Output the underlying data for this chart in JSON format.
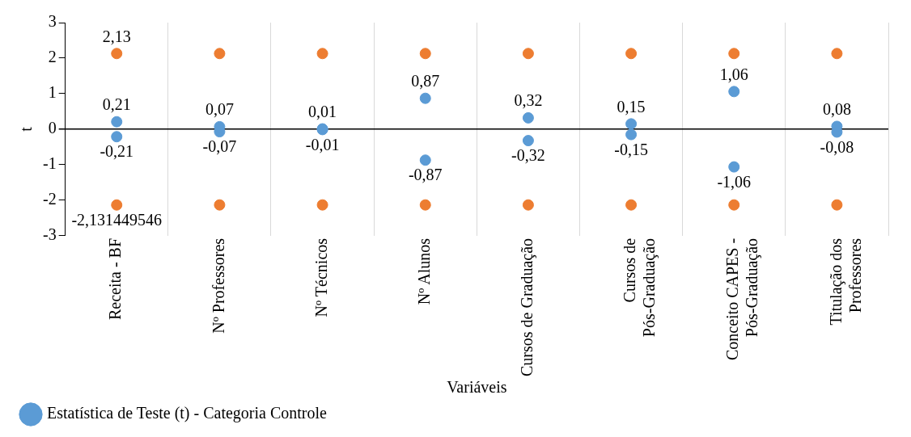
{
  "chart_data": {
    "type": "scatter",
    "xlabel": "Variáveis",
    "ylabel": "t",
    "categories": [
      "Receita - BF",
      "Nº Professores",
      "Nº Técnicos",
      "Nº Alunos",
      "Cursos de Graduação",
      "Cursos de Pós-Graduação",
      "Conceito CAPES - Pós-Graduação",
      "Titulação dos Professores"
    ],
    "series": [
      {
        "name": "Estatística de Teste (t) - Categoria Controle",
        "color": "#5b9bd5",
        "values": [
          0.21,
          0.07,
          0.01,
          0.87,
          0.32,
          0.15,
          1.06,
          0.08
        ],
        "value_labels": [
          "0,21",
          "0,07",
          "0,01",
          "0,87",
          "0,32",
          "0,15",
          "1,06",
          "0,08"
        ]
      },
      {
        "color": "#5b9bd5",
        "values": [
          -0.21,
          -0.07,
          -0.01,
          -0.87,
          -0.32,
          -0.15,
          -1.06,
          -0.08
        ],
        "value_labels": [
          "-0,21",
          "-0,07",
          "-0,01",
          "-0,87",
          "-0,32",
          "-0,15",
          "-1,06",
          "-0,08"
        ]
      },
      {
        "color": "#ed7d31",
        "values": [
          2.13,
          2.13,
          2.13,
          2.13,
          2.13,
          2.13,
          2.13,
          2.13
        ],
        "value_labels": [
          "2,13",
          null,
          null,
          null,
          null,
          null,
          null,
          null
        ]
      },
      {
        "color": "#ed7d31",
        "values": [
          -2.131449546,
          -2.13,
          -2.13,
          -2.13,
          -2.13,
          -2.13,
          -2.13,
          -2.13
        ],
        "value_labels": [
          "-2,131449546",
          null,
          null,
          null,
          null,
          null,
          null,
          null
        ]
      }
    ],
    "ylim": [
      -3,
      3
    ],
    "yticks": [
      -3,
      -2,
      -1,
      0,
      1,
      2,
      3
    ],
    "grid": "x",
    "legend": "bottom left",
    "marker": "circle"
  }
}
